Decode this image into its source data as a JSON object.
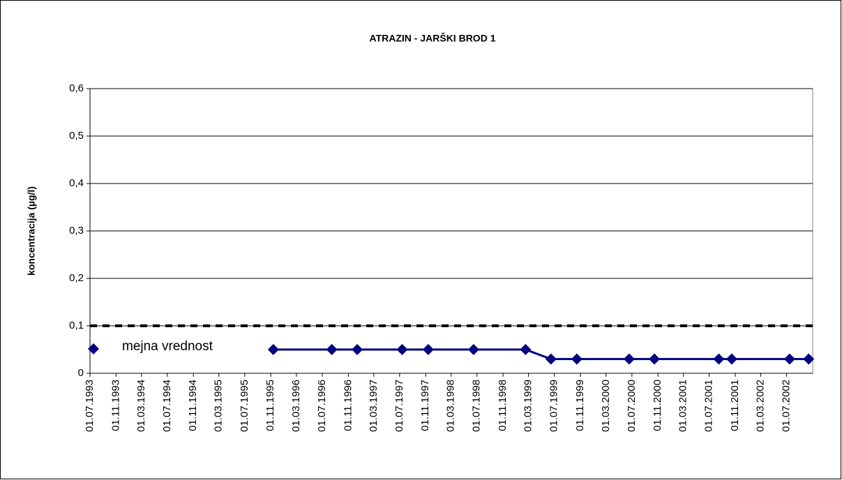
{
  "chart_data": {
    "type": "line",
    "title": "ATRAZIN - JARŠKI BROD 1",
    "y_label": "koncentracija (µg/l)",
    "x": [
      "13.11.1995",
      "15.08.1996",
      "13.12.1996",
      "13.07.1997",
      "13.11.1997",
      "15.06.1998",
      "15.02.1999",
      "15.06.1999",
      "15.10.1999",
      "18.06.2000",
      "15.10.2000",
      "15.08.2001",
      "15.10.2001",
      "15.07.2002",
      "13.10.2002"
    ],
    "series": [
      {
        "name": "mejna vrednost",
        "color": "#000080",
        "values": [
          0.05,
          0.05,
          0.05,
          0.05,
          0.05,
          0.05,
          0.05,
          0.03,
          0.03,
          0.03,
          0.03,
          0.03,
          0.03,
          0.03,
          0.03
        ]
      }
    ],
    "limit": 0.1,
    "limit_color": "#000000",
    "xlim": [
      "01.07.1993",
      "01.11.2002"
    ],
    "xticks": [
      "01.07.1993",
      "01.11.1993",
      "01.03.1994",
      "01.07.1994",
      "01.11.1994",
      "01.03.1995",
      "01.07.1995",
      "01.11.1995",
      "01.03.1996",
      "01.07.1996",
      "01.11.1996",
      "01.03.1997",
      "01.07.1997",
      "01.11.1997",
      "01.03.1998",
      "01.07.1998",
      "01.11.1998",
      "01.03.1999",
      "01.07.1999",
      "01.11.1999",
      "01.03.2000",
      "01.07.2000",
      "01.11.2000",
      "01.03.2001",
      "01.07.2001",
      "01.11.2001",
      "01.03.2002",
      "01.07.2002"
    ],
    "ylim": [
      0,
      0.6
    ],
    "yticks": [
      0,
      {
        "value": 0.1,
        "label": "0,1"
      },
      {
        "value": 0.2,
        "label": "0,2"
      },
      {
        "value": 0.3,
        "label": "0,3"
      },
      {
        "value": 0.4,
        "label": "0,4"
      },
      {
        "value": 0.5,
        "label": "0,5"
      },
      {
        "value": 0.6,
        "label": "0,6"
      }
    ],
    "grid": true,
    "legend": "top-left"
  }
}
